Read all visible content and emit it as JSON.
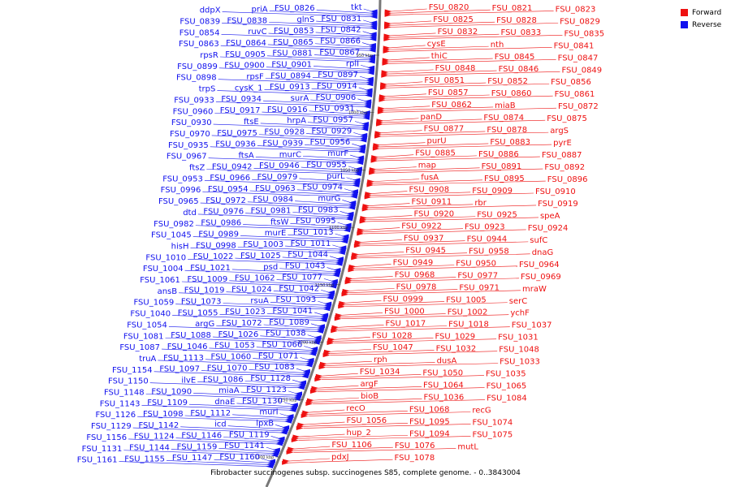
{
  "caption": "Fibrobacter succinogenes subsp. succinogenes S85, complete genome. - 0..3843004",
  "legend": [
    {
      "label": "Forward",
      "color": "#ee1111"
    },
    {
      "label": "Reverse",
      "color": "#1111ee"
    }
  ],
  "colors": {
    "forward": "#ee1111",
    "reverse": "#1111ee",
    "backbone": "#888888"
  },
  "ticks": [
    "950 kbp",
    "1000 kbp",
    "1050 kbp",
    "1100 kbp",
    "1150 kbp",
    "1200 kbp",
    "1250 kbp",
    "1300 kbp"
  ],
  "reverse_labels": [
    "tkt",
    "FSU_0826",
    "priA",
    "ddpX",
    "FSU_0831",
    "glnS",
    "FSU_0838",
    "FSU_0839",
    "FSU_0842",
    "FSU_0853",
    "ruvC",
    "FSU_0854",
    "FSU_0866",
    "FSU_0865",
    "FSU_0864",
    "FSU_0863",
    "FSU_0867",
    "FSU_0881",
    "FSU_0905",
    "rpsR",
    "rplI",
    "FSU_0901",
    "FSU_0900",
    "FSU_0899",
    "FSU_0897",
    "FSU_0894",
    "rpsF",
    "FSU_0898",
    "FSU_0914",
    "FSU_0913",
    "cysK_1",
    "trpS",
    "FSU_0906",
    "surA",
    "FSU_0934",
    "FSU_0933",
    "FSU_0931",
    "FSU_0916",
    "FSU_0917",
    "FSU_0960",
    "FSU_0957",
    "hrpA",
    "ftsE",
    "FSU_0930",
    "FSU_0929",
    "FSU_0928",
    "FSU_0975",
    "FSU_0970",
    "FSU_0956",
    "FSU_0939",
    "FSU_0936",
    "FSU_0935",
    "murF",
    "murC",
    "ftsA",
    "FSU_0967",
    "FSU_0955",
    "FSU_0946",
    "FSU_0942",
    "ftsZ",
    "purL",
    "FSU_0979",
    "FSU_0966",
    "FSU_0953",
    "FSU_0974",
    "FSU_0963",
    "FSU_0954",
    "FSU_0996",
    "murG",
    "FSU_0984",
    "FSU_0972",
    "FSU_0965",
    "FSU_0983",
    "FSU_0981",
    "FSU_0976",
    "dtd",
    "FSU_0995",
    "ftsW",
    "FSU_0986",
    "FSU_0982",
    "FSU_1013",
    "murE",
    "FSU_0989",
    "FSU_1045",
    "FSU_1011",
    "FSU_1003",
    "FSU_0998",
    "hisH",
    "FSU_1044",
    "FSU_1025",
    "FSU_1022",
    "FSU_1010",
    "FSU_1043",
    "psd",
    "FSU_1021",
    "FSU_1004",
    "FSU_1077",
    "FSU_1062",
    "FSU_1009",
    "FSU_1061",
    "FSU_1042",
    "FSU_1024",
    "FSU_1019",
    "ansB",
    "FSU_1093",
    "rsuA",
    "FSU_1073",
    "FSU_1059",
    "FSU_1041",
    "FSU_1023",
    "FSU_1055",
    "FSU_1040",
    "FSU_1089",
    "FSU_1072",
    "argG",
    "FSU_1054",
    "FSU_1038",
    "FSU_1026",
    "FSU_1088",
    "FSU_1081",
    "FSU_1066",
    "FSU_1053",
    "FSU_1046",
    "FSU_1087",
    "FSU_1071",
    "FSU_1060",
    "FSU_1113",
    "truA",
    "FSU_1083",
    "FSU_1070",
    "FSU_1097",
    "FSU_1154",
    "FSU_1128",
    "FSU_1086",
    "ilvE",
    "FSU_1150",
    "FSU_1123",
    "miaA",
    "FSU_1090",
    "FSU_1148",
    "FSU_1130",
    "dnaE",
    "FSU_1109",
    "FSU_1143",
    "murI",
    "FSU_1112",
    "FSU_1098",
    "FSU_1126",
    "lpxB",
    "icd",
    "FSU_1142",
    "FSU_1129",
    "FSU_1119",
    "FSU_1146",
    "FSU_1124",
    "FSU_1156",
    "FSU_1141",
    "FSU_1159",
    "FSU_1144",
    "FSU_1131",
    "FSU_1160",
    "FSU_1147",
    "FSU_1155",
    "FSU_1161"
  ],
  "forward_labels": [
    "FSU_0820",
    "FSU_0821",
    "FSU_0823",
    "FSU_0825",
    "FSU_0828",
    "FSU_0829",
    "FSU_0832",
    "FSU_0833",
    "FSU_0835",
    "cysE",
    "nth",
    "FSU_0841",
    "thiC",
    "FSU_0845",
    "FSU_0847",
    "FSU_0848",
    "FSU_0846",
    "FSU_0849",
    "FSU_0851",
    "FSU_0852",
    "FSU_0856",
    "FSU_0857",
    "FSU_0860",
    "FSU_0861",
    "FSU_0862",
    "miaB",
    "FSU_0872",
    "panD",
    "FSU_0874",
    "FSU_0875",
    "FSU_0877",
    "FSU_0878",
    "argS",
    "purU",
    "FSU_0883",
    "pyrE",
    "FSU_0885",
    "FSU_0886",
    "FSU_0887",
    "map",
    "FSU_0891",
    "FSU_0892",
    "fusA",
    "FSU_0895",
    "FSU_0896",
    "FSU_0908",
    "FSU_0909",
    "FSU_0910",
    "FSU_0911",
    "rbr",
    "FSU_0919",
    "FSU_0920",
    "FSU_0925",
    "speA",
    "FSU_0922",
    "FSU_0923",
    "FSU_0924",
    "FSU_0937",
    "FSU_0944",
    "sufC",
    "FSU_0945",
    "FSU_0958",
    "dnaG",
    "FSU_0949",
    "FSU_0950",
    "FSU_0964",
    "FSU_0968",
    "FSU_0977",
    "FSU_0969",
    "FSU_0978",
    "FSU_0971",
    "mraW",
    "FSU_0999",
    "FSU_1005",
    "serC",
    "FSU_1000",
    "FSU_1002",
    "ychF",
    "FSU_1017",
    "FSU_1018",
    "FSU_1037",
    "FSU_1028",
    "FSU_1029",
    "FSU_1031",
    "FSU_1047",
    "FSU_1032",
    "FSU_1048",
    "rph",
    "dusA",
    "FSU_1033",
    "FSU_1034",
    "FSU_1050",
    "FSU_1035",
    "argF",
    "FSU_1064",
    "FSU_1065",
    "bioB",
    "FSU_1036",
    "FSU_1084",
    "recO",
    "FSU_1068",
    "recG",
    "FSU_1056",
    "FSU_1095",
    "FSU_1074",
    "hup_2",
    "FSU_1094",
    "FSU_1075",
    "FSU_1106",
    "FSU_1076",
    "mutL",
    "pdxJ",
    "FSU_1078"
  ]
}
